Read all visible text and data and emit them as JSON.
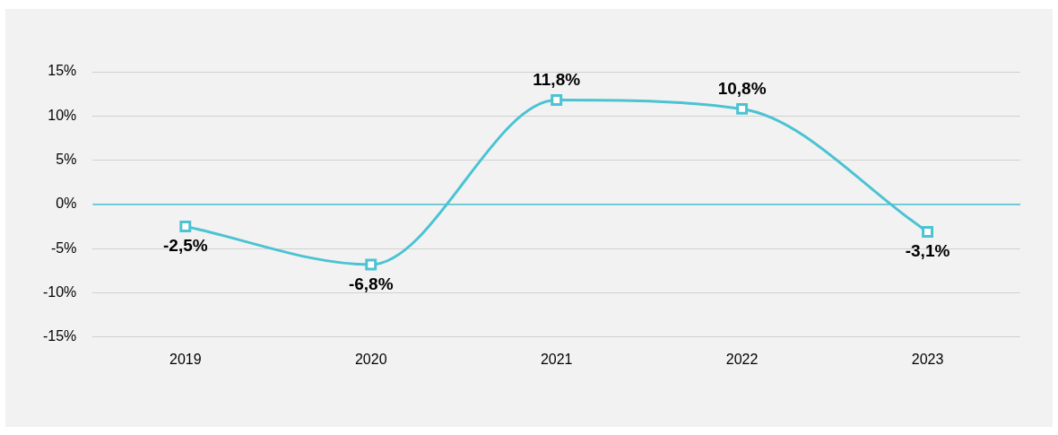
{
  "chart_data": {
    "type": "line",
    "categories": [
      "2019",
      "2020",
      "2021",
      "2022",
      "2023"
    ],
    "series": [
      {
        "color": "#4bc3d3",
        "values": [
          -2.5,
          -6.8,
          11.8,
          10.8,
          -3.1
        ],
        "value_labels": [
          "-2,5%",
          "-6,8%",
          "11,8%",
          "10,8%",
          "-3,1%"
        ]
      }
    ],
    "ylim": [
      -15,
      15
    ],
    "yticks": [
      {
        "value": -15,
        "label": "-15%"
      },
      {
        "value": -10,
        "label": "-10%"
      },
      {
        "value": -5,
        "label": "-5%"
      },
      {
        "value": 0,
        "label": "0%"
      },
      {
        "value": 5,
        "label": "5%"
      },
      {
        "value": 10,
        "label": "10%"
      },
      {
        "value": 15,
        "label": "15%"
      }
    ],
    "ref_lines": [
      {
        "axis": "y",
        "value": 0,
        "color": "#4bc3d3"
      }
    ],
    "grid": "y",
    "legend": false,
    "marker": "square",
    "line_style": "solid"
  }
}
